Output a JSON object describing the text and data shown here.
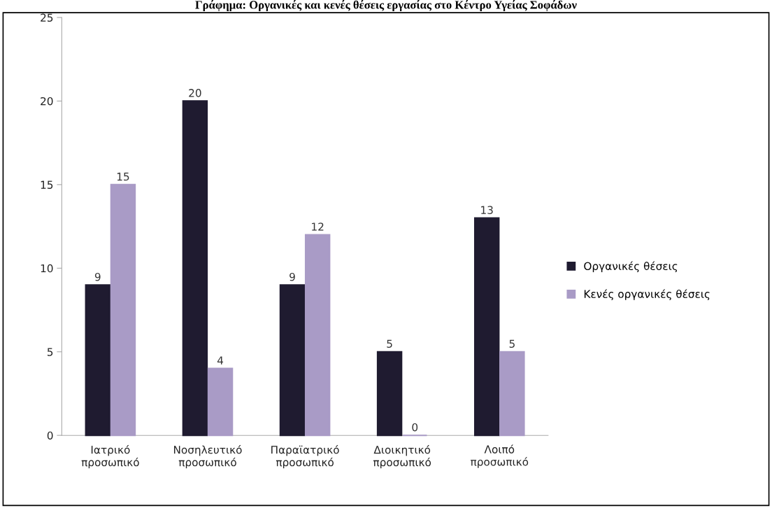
{
  "chart_data": {
    "type": "bar",
    "title": "Γράφημα: Οργανικές και κενές θέσεις εργασίας στο Κέντρο Υγείας Σοφάδων",
    "categories": [
      "Ιατρικό\nπροσωπικό",
      "Νοσηλευτικό\nπροσωπικό",
      "Παραϊατρικό\nπροσωπικό",
      "Διοικητικό\nπροσωπικό",
      "Λοιπό\nπροσωπικό"
    ],
    "series": [
      {
        "name": "Οργανικές θέσεις",
        "color": "#1f1b30",
        "values": [
          9,
          20,
          9,
          5,
          13
        ]
      },
      {
        "name": "Κενές οργανικές θέσεις",
        "color": "#a99bc6",
        "values": [
          15,
          4,
          12,
          0,
          5
        ]
      }
    ],
    "ylim": [
      0,
      25
    ],
    "yticks": [
      0,
      5,
      10,
      15,
      20,
      25
    ],
    "grid": false,
    "legend": "right",
    "data_labels": true
  }
}
